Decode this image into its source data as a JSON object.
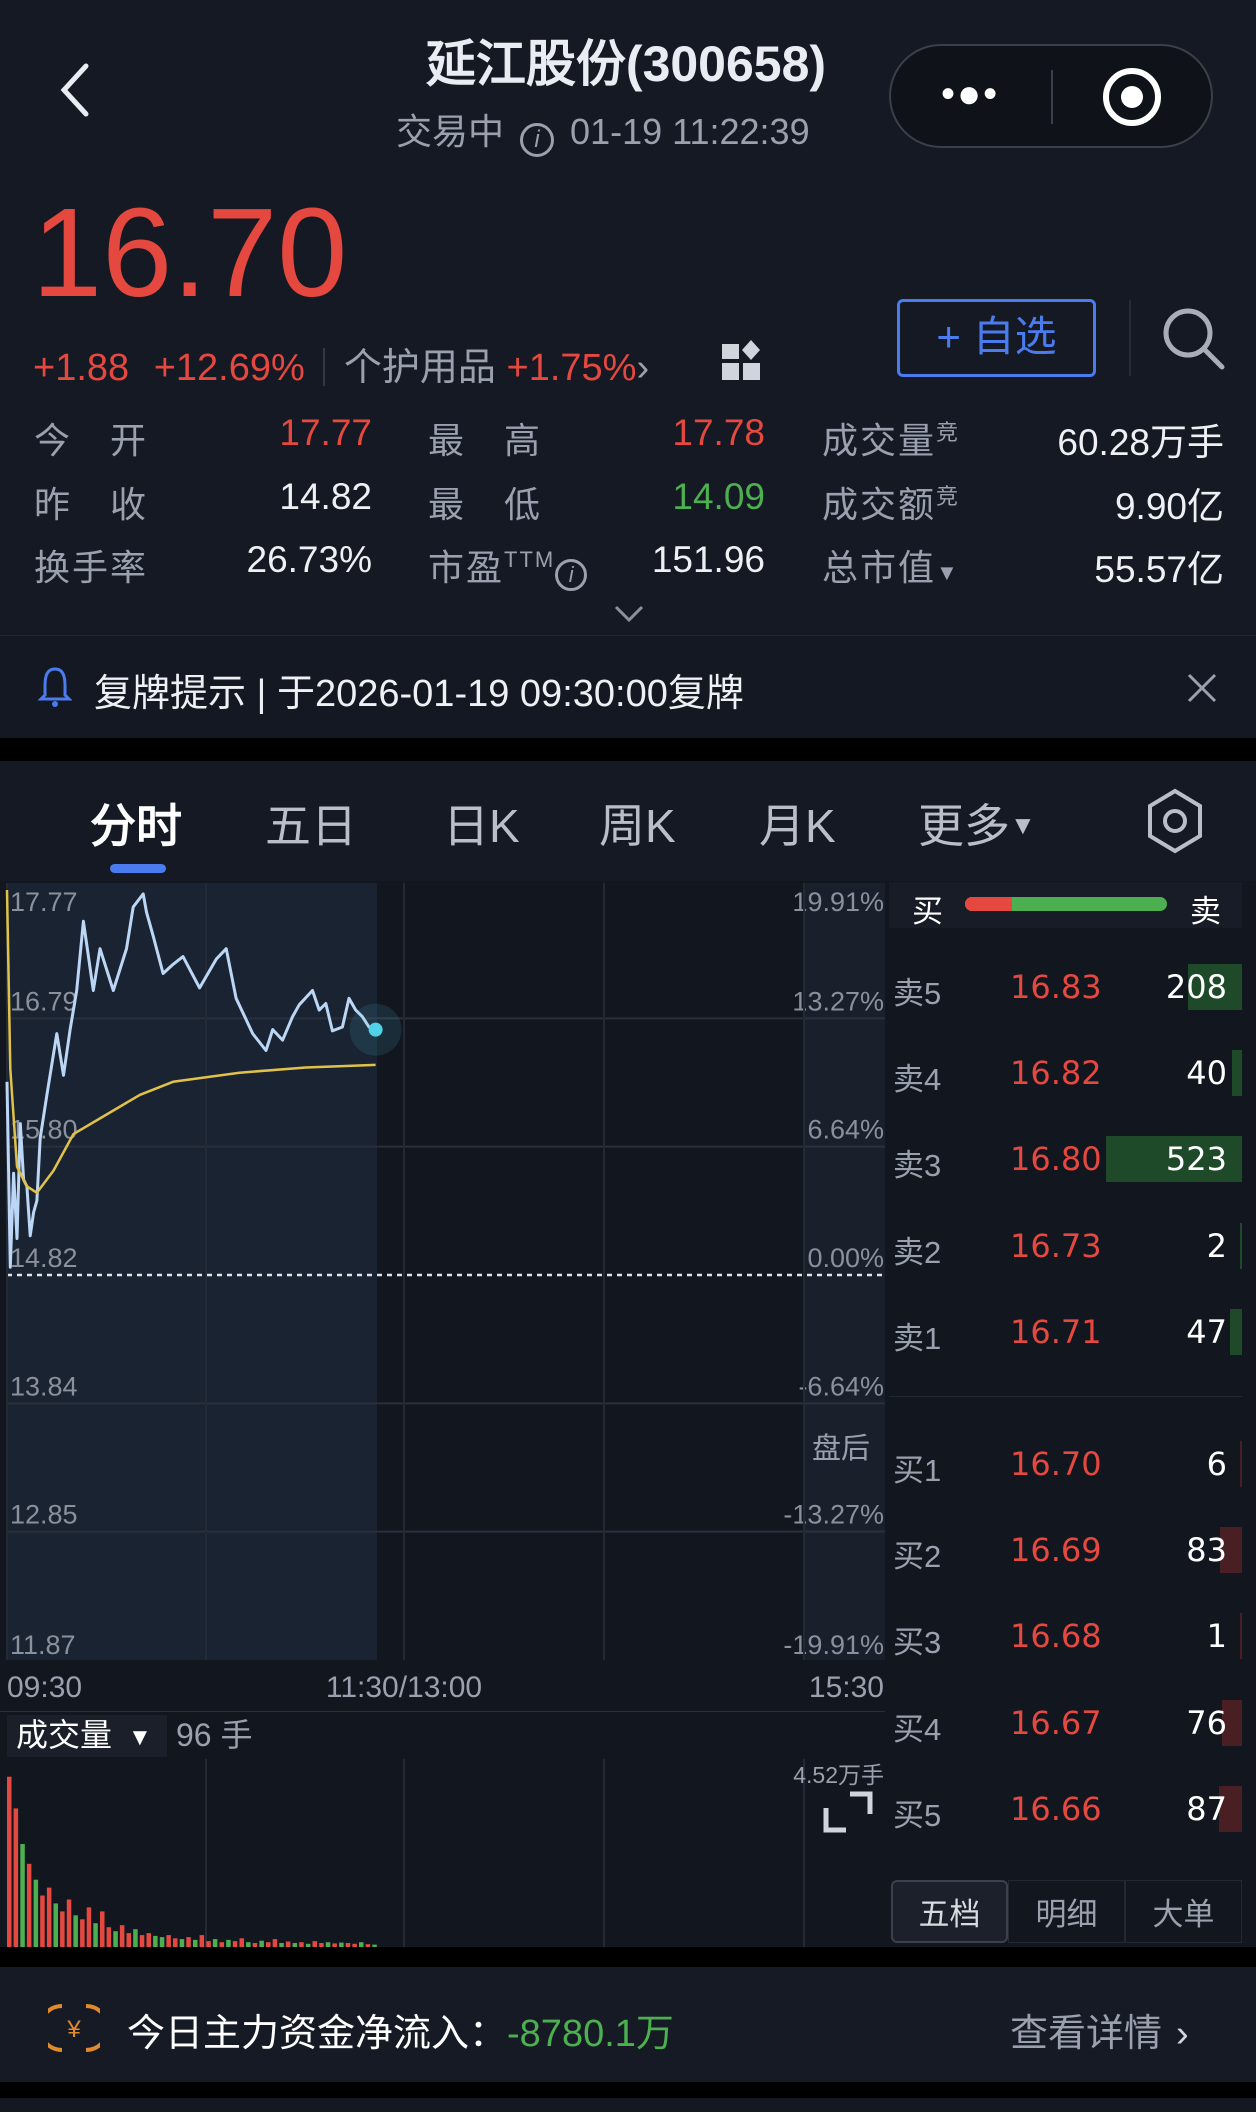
{
  "header": {
    "title": "延江股份(300658)",
    "status": "交易中",
    "datetime": "01-19 11:22:39",
    "more_icon": "ellipsis-icon",
    "target_icon": "target-icon"
  },
  "quote": {
    "price": "16.70",
    "change": "+1.88",
    "change_pct": "+12.69%",
    "sector": "个护用品",
    "sector_pct": "+1.75%",
    "watch_label": "+ 自选",
    "stats": [
      {
        "label": "今　开",
        "value": "17.77",
        "color": "red"
      },
      {
        "label": "最　高",
        "value": "17.78",
        "color": "red"
      },
      {
        "label": "成交量",
        "sup": "竞",
        "value": "60.28万手",
        "color": "white"
      },
      {
        "label": "昨　收",
        "value": "14.82",
        "color": "white"
      },
      {
        "label": "最　低",
        "value": "14.09",
        "color": "green"
      },
      {
        "label": "成交额",
        "sup": "竞",
        "value": "9.90亿",
        "color": "white"
      },
      {
        "label": "换手率",
        "value": "26.73%",
        "color": "white"
      },
      {
        "label": "市盈",
        "sup": "TTM",
        "value": "151.96",
        "color": "white"
      },
      {
        "label": "总市值",
        "value": "55.57亿",
        "color": "white"
      }
    ]
  },
  "notice": {
    "text": "复牌提示 | 于2026-01-19 09:30:00复牌"
  },
  "tabs": [
    "分时",
    "五日",
    "日K",
    "周K",
    "月K",
    "更多"
  ],
  "active_tab": "分时",
  "colors": {
    "up": "#e5483f",
    "down": "#4caf50",
    "accent": "#4a7cf0",
    "price_line": "#bcd6f5",
    "avg_line": "#e0c24a"
  },
  "chart_data": [
    {
      "type": "line",
      "ylim": [
        11.87,
        17.77
      ],
      "y_tick_labels": [
        "17.77",
        "16.79",
        "15.80",
        "14.82",
        "13.84",
        "12.85",
        "11.87"
      ],
      "pct_tick_labels": [
        "19.91%",
        "13.27%",
        "6.64%",
        "0.00%",
        "-6.64%",
        "-13.27%",
        "-19.91%"
      ],
      "x_tick_labels": [
        "09:30",
        "11:30/13:00",
        "15:30"
      ],
      "after_hours_label": "盘后",
      "series": [
        {
          "key": "price",
          "x": [
            "09:30",
            "09:31",
            "09:32",
            "09:33",
            "09:34",
            "09:35",
            "09:36",
            "09:37",
            "09:38",
            "09:39",
            "09:40",
            "09:42",
            "09:45",
            "09:47",
            "09:49",
            "09:51",
            "09:53",
            "09:56",
            "09:58",
            "10:02",
            "10:06",
            "10:08",
            "10:11",
            "10:12",
            "10:14",
            "10:17",
            "10:20",
            "10:23",
            "10:28",
            "10:33",
            "10:36",
            "10:39",
            "10:44",
            "10:48",
            "10:50",
            "10:53",
            "10:56",
            "10:58",
            "11:02",
            "11:04",
            "11:06",
            "11:08",
            "11:11",
            "11:13",
            "11:15",
            "11:17",
            "11:19",
            "11:21"
          ],
          "y": [
            16.3,
            14.88,
            15.6,
            15.1,
            15.98,
            15.55,
            15.5,
            15.12,
            15.3,
            15.39,
            15.87,
            16.2,
            16.67,
            16.35,
            16.7,
            17.0,
            17.53,
            17.0,
            17.32,
            17.0,
            17.32,
            17.64,
            17.74,
            17.6,
            17.42,
            17.13,
            17.2,
            17.26,
            17.02,
            17.24,
            17.32,
            16.94,
            16.67,
            16.54,
            16.7,
            16.62,
            16.8,
            16.89,
            17.0,
            16.85,
            16.9,
            16.69,
            16.72,
            16.94,
            16.85,
            16.8,
            16.72,
            16.7
          ]
        },
        {
          "key": "avg",
          "x": [
            "09:30",
            "09:31",
            "09:33",
            "09:36",
            "09:39",
            "09:44",
            "09:50",
            "10:00",
            "10:10",
            "10:20",
            "10:40",
            "11:00",
            "11:21"
          ],
          "y": [
            17.77,
            16.4,
            15.65,
            15.5,
            15.45,
            15.62,
            15.9,
            16.05,
            16.2,
            16.3,
            16.37,
            16.41,
            16.43
          ]
        }
      ]
    },
    {
      "type": "bar",
      "title": "成交量",
      "current_value": "96 手",
      "ymax_label": "4.52万手",
      "ylim": [
        0,
        4.52
      ],
      "unit": "万手",
      "interval_minutes": 2,
      "values": [
        4.3,
        3.5,
        2.6,
        2.1,
        1.7,
        1.3,
        1.5,
        1.1,
        0.9,
        1.2,
        0.8,
        0.7,
        1.0,
        0.6,
        0.9,
        0.5,
        0.4,
        0.55,
        0.35,
        0.45,
        0.3,
        0.35,
        0.28,
        0.25,
        0.3,
        0.22,
        0.2,
        0.25,
        0.18,
        0.3,
        0.15,
        0.2,
        0.12,
        0.18,
        0.15,
        0.22,
        0.12,
        0.1,
        0.16,
        0.12,
        0.2,
        0.1,
        0.14,
        0.1,
        0.12,
        0.08,
        0.15,
        0.1,
        0.12,
        0.09,
        0.11,
        0.1,
        0.08,
        0.12,
        0.07,
        0.06
      ],
      "direction": [
        "up",
        "up",
        "down",
        "up",
        "down",
        "up",
        "up",
        "down",
        "up",
        "up",
        "down",
        "up",
        "up",
        "down",
        "up",
        "up",
        "down",
        "up",
        "up",
        "down",
        "up",
        "up",
        "down",
        "down",
        "up",
        "up",
        "down",
        "up",
        "down",
        "up",
        "up",
        "down",
        "up",
        "down",
        "up",
        "up",
        "down",
        "up",
        "down",
        "up",
        "up",
        "down",
        "up",
        "down",
        "up",
        "down",
        "up",
        "up",
        "down",
        "up",
        "down",
        "up",
        "up",
        "down",
        "up",
        "down"
      ]
    }
  ],
  "order_book": {
    "buy_label": "买",
    "sell_label": "卖",
    "buy_ratio": 0.235,
    "asks": [
      {
        "label": "卖5",
        "price": "16.83",
        "qty": "208",
        "size": 208
      },
      {
        "label": "卖4",
        "price": "16.82",
        "qty": "40",
        "size": 40
      },
      {
        "label": "卖3",
        "price": "16.80",
        "qty": "523",
        "size": 523
      },
      {
        "label": "卖2",
        "price": "16.73",
        "qty": "2",
        "size": 2
      },
      {
        "label": "卖1",
        "price": "16.71",
        "qty": "47",
        "size": 47
      }
    ],
    "bids": [
      {
        "label": "买1",
        "price": "16.70",
        "qty": "6",
        "size": 6
      },
      {
        "label": "买2",
        "price": "16.69",
        "qty": "83",
        "size": 83
      },
      {
        "label": "买3",
        "price": "16.68",
        "qty": "1",
        "size": 1
      },
      {
        "label": "买4",
        "price": "16.67",
        "qty": "76",
        "size": 76
      },
      {
        "label": "买5",
        "price": "16.66",
        "qty": "87",
        "size": 87
      }
    ],
    "tabs": [
      "五档",
      "明细",
      "大单"
    ],
    "active_tab": "五档"
  },
  "fund_flow": {
    "label": "今日主力资金净流入：",
    "value": "-8780.1万",
    "link": "查看详情"
  }
}
